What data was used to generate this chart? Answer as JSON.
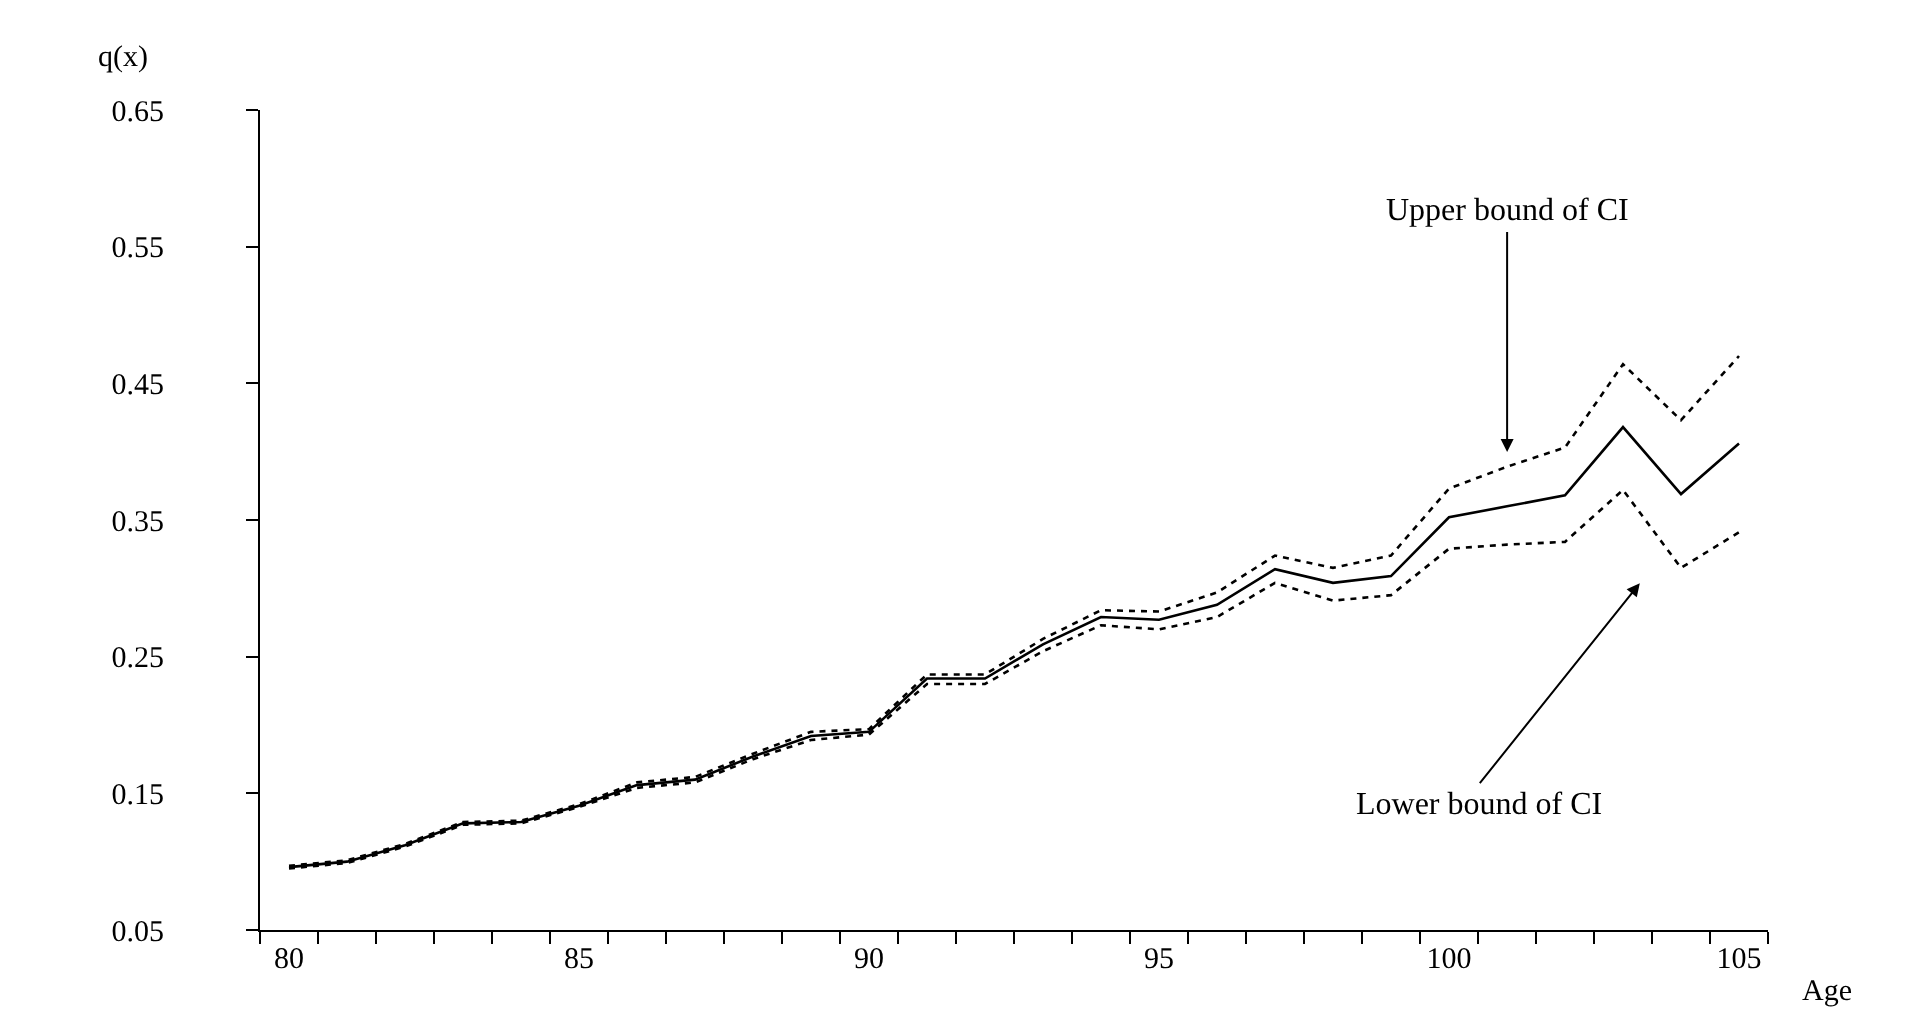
{
  "chart_data": {
    "type": "line",
    "xlabel": "Age",
    "ylabel": "q(x)",
    "x": [
      80,
      81,
      82,
      83,
      84,
      85,
      86,
      87,
      88,
      89,
      90,
      91,
      92,
      93,
      94,
      95,
      96,
      97,
      98,
      99,
      100,
      101,
      102,
      103,
      104,
      105
    ],
    "series": [
      {
        "color": "#000000",
        "line_style": "solid",
        "values": [
          0.096,
          0.1,
          0.112,
          0.128,
          0.129,
          0.141,
          0.156,
          0.16,
          0.177,
          0.192,
          0.195,
          0.234,
          0.234,
          0.259,
          0.279,
          0.277,
          0.288,
          0.314,
          0.304,
          0.309,
          0.352,
          0.36,
          0.368,
          0.418,
          0.369,
          0.406
        ]
      },
      {
        "color": "#000000",
        "line_style": "dotted",
        "values": [
          0.097,
          0.101,
          0.113,
          0.129,
          0.13,
          0.142,
          0.158,
          0.162,
          0.179,
          0.195,
          0.197,
          0.237,
          0.237,
          0.263,
          0.284,
          0.283,
          0.297,
          0.324,
          0.315,
          0.324,
          0.373,
          0.389,
          0.403,
          0.464,
          0.423,
          0.47
        ]
      },
      {
        "color": "#000000",
        "line_style": "dotted",
        "values": [
          0.095,
          0.099,
          0.111,
          0.127,
          0.128,
          0.14,
          0.154,
          0.158,
          0.175,
          0.189,
          0.193,
          0.23,
          0.23,
          0.254,
          0.273,
          0.27,
          0.279,
          0.304,
          0.291,
          0.295,
          0.329,
          0.332,
          0.334,
          0.372,
          0.315,
          0.341
        ]
      }
    ],
    "xlim": [
      79.5,
      105.5
    ],
    "xticks": [
      80,
      85,
      90,
      95,
      100,
      105
    ],
    "ylim": [
      0.05,
      0.65
    ],
    "yticks": [
      {
        "value": 0.05,
        "label": "0.05"
      },
      {
        "value": 0.15,
        "label": "0.15"
      },
      {
        "value": 0.25,
        "label": "0.25"
      },
      {
        "value": 0.35,
        "label": "0.35"
      },
      {
        "value": 0.45,
        "label": "0.45"
      },
      {
        "value": 0.55,
        "label": "0.55"
      },
      {
        "value": 0.65,
        "label": "0.65"
      }
    ],
    "marker": "none",
    "annotations": [
      "Upper bound of CI",
      "Lower bound of CI"
    ]
  }
}
